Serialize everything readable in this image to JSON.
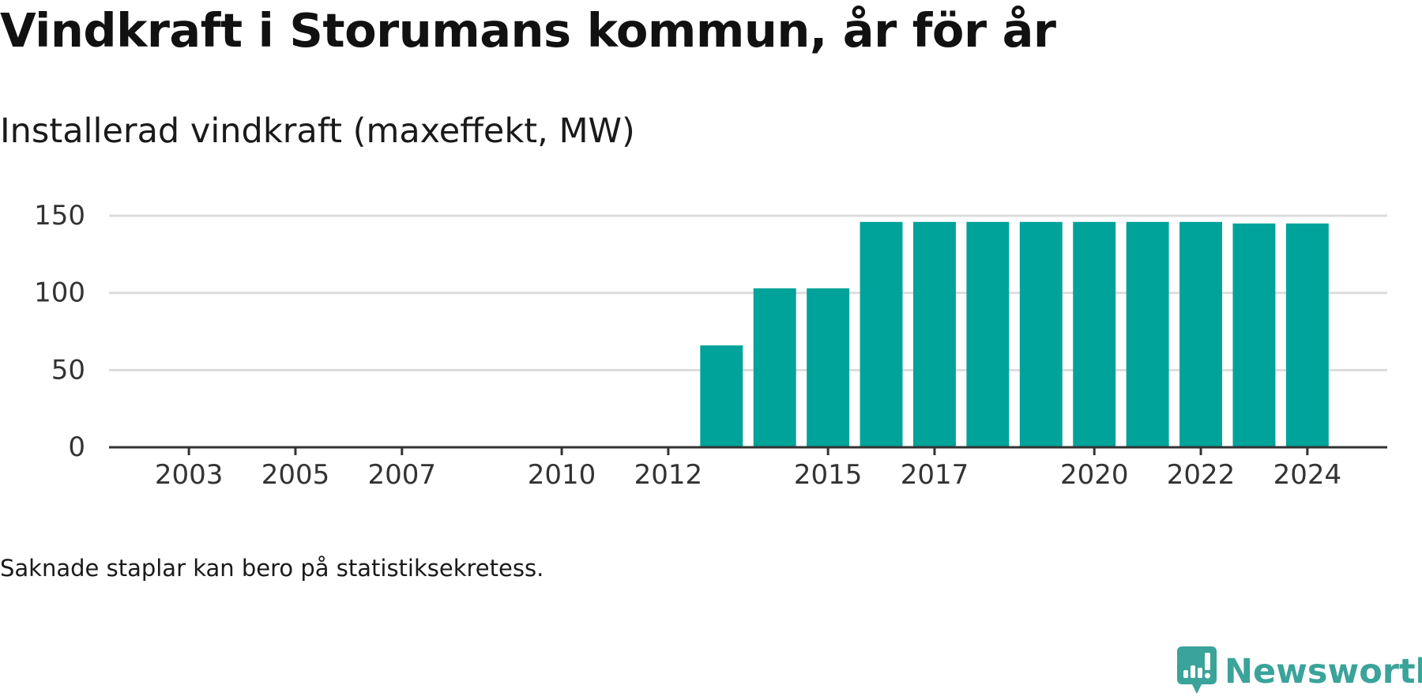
{
  "header": {
    "title": "Vindkraft i Storumans kommun, år för år",
    "subtitle": "Installerad vindkraft (maxeffekt, MW)"
  },
  "footnote": "Saknade staplar kan bero på statistiksekretess.",
  "brand": {
    "name": "Newsworthy",
    "icon": "newsworthy-logo-icon",
    "color": "#3aa39a"
  },
  "colors": {
    "bar": "#00a39a",
    "gridline": "#dddddd",
    "axis": "#333333"
  },
  "chart_data": {
    "type": "bar",
    "title": "Installerad vindkraft (maxeffekt, MW)",
    "xlabel": "",
    "ylabel": "",
    "x": [
      2002,
      2003,
      2004,
      2005,
      2006,
      2007,
      2008,
      2009,
      2010,
      2011,
      2012,
      2013,
      2014,
      2015,
      2016,
      2017,
      2018,
      2019,
      2020,
      2021,
      2022,
      2023,
      2024
    ],
    "values": [
      0,
      0,
      0,
      0,
      0,
      0,
      0,
      0,
      0,
      0,
      0,
      66,
      103,
      103,
      146,
      146,
      146,
      146,
      146,
      146,
      146,
      145,
      145
    ],
    "xticks": [
      2003,
      2005,
      2007,
      2010,
      2012,
      2015,
      2017,
      2020,
      2022,
      2024
    ],
    "yticks": [
      0,
      50,
      100,
      150
    ],
    "ylim": [
      0,
      150
    ],
    "xlim": [
      2001.5,
      2025.5
    ],
    "grid": true,
    "legend": "none"
  }
}
